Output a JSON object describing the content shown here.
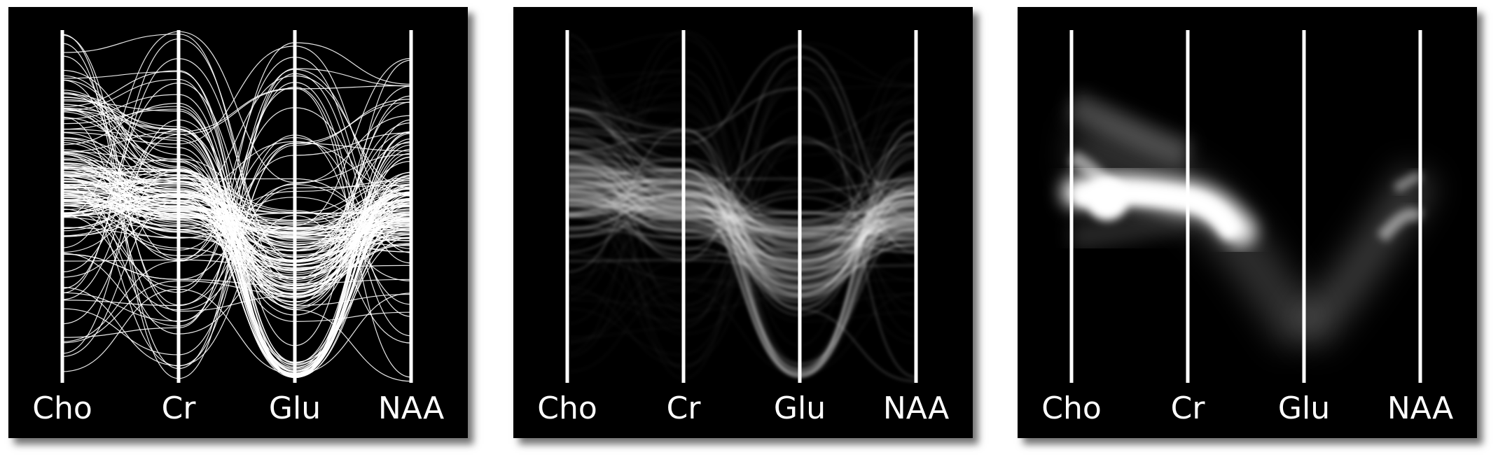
{
  "axes": [
    "Cho",
    "Cr",
    "Glu",
    "NAA"
  ],
  "panels": [
    {
      "id": "lines",
      "style": "line-plot",
      "colors": {
        "background": "#000000",
        "lines": "#ffffff",
        "axis": "#ffffff"
      }
    },
    {
      "id": "density",
      "style": "line-density",
      "colors": {
        "background": "#000000",
        "density": "#ffffff",
        "axis": "#ffffff"
      }
    },
    {
      "id": "smoothed",
      "style": "smoothed-density",
      "colors": {
        "background": "#000000",
        "density": "#ffffff",
        "axis": "#ffffff"
      }
    }
  ]
}
